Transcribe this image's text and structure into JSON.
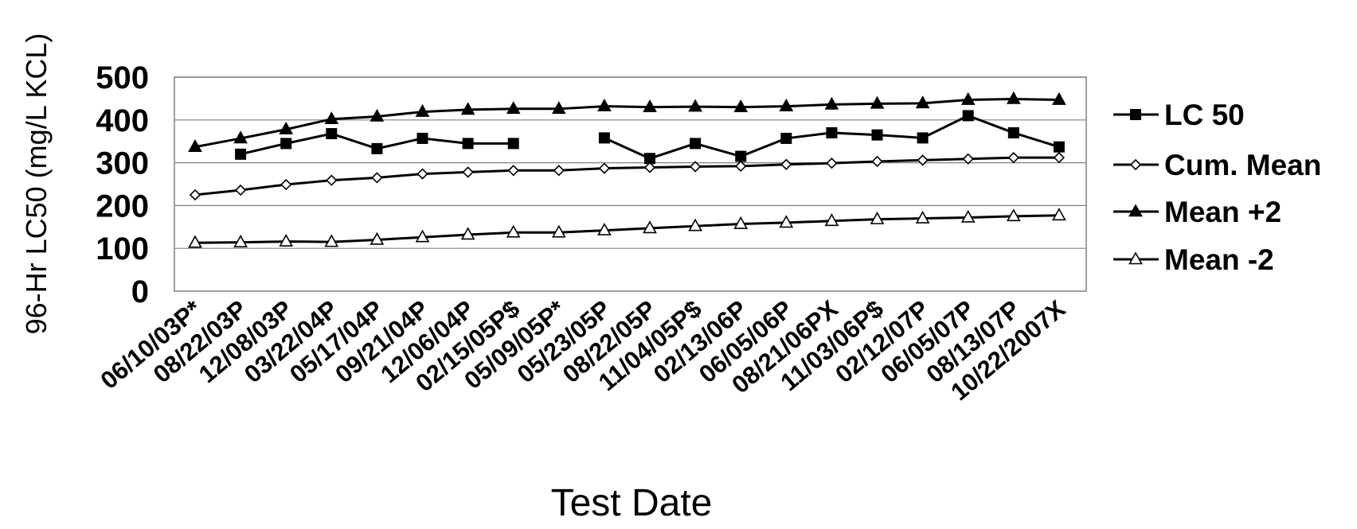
{
  "chart_data": {
    "type": "line",
    "title": "",
    "xlabel": "Test Date",
    "ylabel": "96-Hr LC50 (mg/L KCL)",
    "ylim": [
      0,
      500
    ],
    "yticks": [
      0,
      100,
      200,
      300,
      400,
      500
    ],
    "grid": "horizontal",
    "legend_position": "right",
    "categories": [
      "06/10/03P*",
      "08/22/03P",
      "12/08/03P",
      "03/22/04P",
      "05/17/04P",
      "09/21/04P",
      "12/06/04P",
      "02/15/05P$",
      "05/09/05P*",
      "05/23/05P",
      "08/22/05P",
      "11/04/05P$",
      "02/13/06P",
      "06/05/06P",
      "08/21/06PX",
      "11/03/06P$",
      "02/12/07P",
      "06/05/07P",
      "08/13/07P",
      "10/22/2007X"
    ],
    "series": [
      {
        "name": "LC 50",
        "marker": "square-filled",
        "color": "#000000",
        "values": [
          null,
          320,
          345,
          368,
          333,
          357,
          345,
          345,
          null,
          358,
          310,
          345,
          315,
          357,
          370,
          365,
          358,
          410,
          370,
          337
        ]
      },
      {
        "name": "Cum. Mean",
        "marker": "diamond-open",
        "color": "#000000",
        "values": [
          225,
          236,
          249,
          259,
          265,
          274,
          278,
          282,
          282,
          287,
          289,
          291,
          292,
          296,
          299,
          303,
          306,
          309,
          312,
          312
        ]
      },
      {
        "name": "Mean +2",
        "marker": "triangle-filled",
        "color": "#000000",
        "values": [
          337,
          357,
          378,
          402,
          408,
          419,
          424,
          426,
          426,
          432,
          430,
          431,
          430,
          432,
          436,
          438,
          439,
          447,
          449,
          447
        ]
      },
      {
        "name": "Mean -2",
        "marker": "triangle-open",
        "color": "#000000",
        "values": [
          113,
          114,
          116,
          115,
          120,
          126,
          132,
          137,
          137,
          142,
          147,
          152,
          157,
          160,
          164,
          168,
          170,
          172,
          175,
          177
        ]
      }
    ]
  }
}
